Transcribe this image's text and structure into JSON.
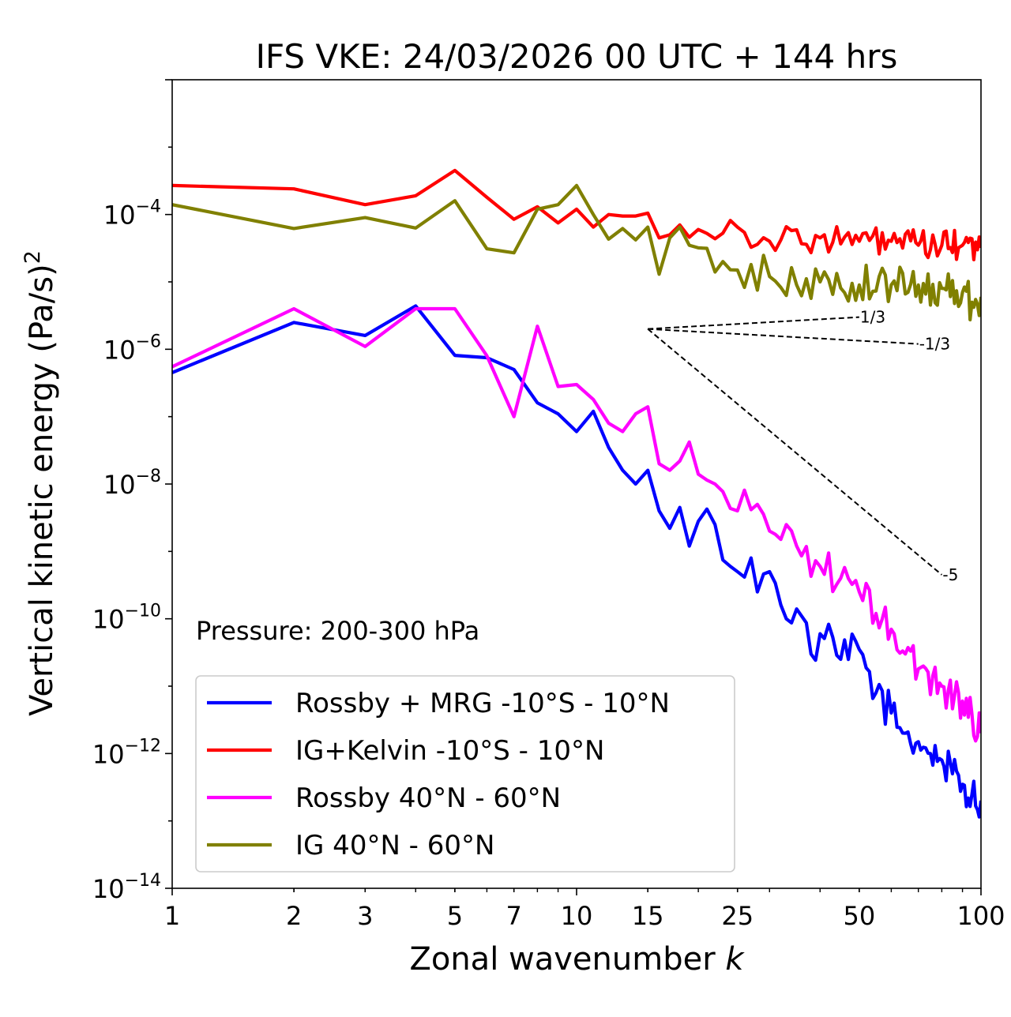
{
  "chart_data": {
    "type": "line",
    "title": "IFS VKE: 24/03/2026 00 UTC + 144 hrs",
    "xlabel": "Zonal wavenumber",
    "xlabel_var": "k",
    "ylabel": "Vertical kinetic energy (Pa/s)",
    "ylabel_exp": "2",
    "xscale": "log",
    "yscale": "log",
    "xlim": [
      1,
      100
    ],
    "ylim": [
      1e-14,
      0.01
    ],
    "xticks": [
      {
        "value": 1,
        "label": "1"
      },
      {
        "value": 2,
        "label": "2"
      },
      {
        "value": 3,
        "label": "3"
      },
      {
        "value": 5,
        "label": "5"
      },
      {
        "value": 7,
        "label": "7"
      },
      {
        "value": 10,
        "label": "10"
      },
      {
        "value": 15,
        "label": "15"
      },
      {
        "value": 25,
        "label": "25"
      },
      {
        "value": 50,
        "label": "50"
      },
      {
        "value": 100,
        "label": "100"
      }
    ],
    "yticks": [
      {
        "value": 0.0001,
        "base": "10",
        "exp": "−4"
      },
      {
        "value": 1e-06,
        "base": "10",
        "exp": "−6"
      },
      {
        "value": 1e-08,
        "base": "10",
        "exp": "−8"
      },
      {
        "value": 1e-10,
        "base": "10",
        "exp": "−10"
      },
      {
        "value": 1e-12,
        "base": "10",
        "exp": "−12"
      },
      {
        "value": 1e-14,
        "base": "10",
        "exp": "−14"
      }
    ],
    "annotation": "Pressure: 200-300 hPa",
    "legend_location": "lower-left",
    "reference_lines": [
      {
        "label": "1/3",
        "x0": 15,
        "y0": 2e-06,
        "x1": 50,
        "y1": 3e-06
      },
      {
        "label": "-1/3",
        "x0": 15,
        "y0": 2e-06,
        "x1": 70,
        "y1": 1.2e-06
      },
      {
        "label": "-5",
        "x0": 15,
        "y0": 2e-06,
        "x1": 80,
        "y1": 4.5e-10
      }
    ],
    "series": [
      {
        "name": "Rossby + MRG -10°S - 10°N",
        "color": "#0000ff",
        "anchors": [
          [
            1,
            4.5e-07
          ],
          [
            2,
            2.5e-06
          ],
          [
            3,
            1.6e-06
          ],
          [
            4,
            4.4e-06
          ],
          [
            5,
            8.1e-07
          ],
          [
            6,
            7.5e-07
          ],
          [
            7,
            5e-07
          ],
          [
            8,
            1.6e-07
          ],
          [
            9,
            1.1e-07
          ],
          [
            10,
            6e-08
          ],
          [
            11,
            1.2e-07
          ],
          [
            12,
            3.5e-08
          ],
          [
            13,
            1.6e-08
          ],
          [
            14,
            1e-08
          ],
          [
            15,
            1.6e-08
          ],
          [
            16,
            4e-09
          ],
          [
            17,
            2.2e-09
          ],
          [
            18,
            4.5e-09
          ],
          [
            19,
            1.2e-09
          ],
          [
            20,
            2.8e-09
          ],
          [
            22,
            2.5e-09
          ],
          [
            24,
            6e-10
          ],
          [
            25,
            5e-10
          ],
          [
            27,
            8e-10
          ],
          [
            28,
            2.5e-10
          ],
          [
            30,
            5e-10
          ],
          [
            32,
            1.6e-10
          ],
          [
            35,
            1.4e-10
          ],
          [
            38,
            3e-11
          ],
          [
            40,
            6e-11
          ],
          [
            45,
            2.5e-11
          ],
          [
            50,
            3.5e-11
          ],
          [
            55,
            8e-12
          ],
          [
            60,
            4e-12
          ],
          [
            65,
            2e-12
          ],
          [
            70,
            1.5e-12
          ],
          [
            75,
            1e-12
          ],
          [
            80,
            8e-13
          ],
          [
            85,
            5e-13
          ],
          [
            90,
            3.5e-13
          ],
          [
            95,
            2.5e-13
          ],
          [
            100,
            2e-13
          ]
        ],
        "noise": 0.3
      },
      {
        "name": "IG+Kelvin -10°S - 10°N",
        "color": "#ff0000",
        "anchors": [
          [
            1,
            0.00027
          ],
          [
            2,
            0.00024
          ],
          [
            3,
            0.00014
          ],
          [
            4,
            0.00019
          ],
          [
            5,
            0.00045
          ],
          [
            6,
            0.00018
          ],
          [
            7,
            8.5e-05
          ],
          [
            8,
            0.00013
          ],
          [
            9,
            7.5e-05
          ],
          [
            10,
            0.00012
          ],
          [
            11,
            6.5e-05
          ],
          [
            12,
            0.0001
          ],
          [
            13,
            9.5e-05
          ],
          [
            14,
            9.5e-05
          ],
          [
            15,
            0.000105
          ],
          [
            16,
            4.5e-05
          ],
          [
            17,
            5e-05
          ],
          [
            18,
            7e-05
          ],
          [
            20,
            6e-05
          ],
          [
            25,
            6.5e-05
          ],
          [
            30,
            4e-05
          ],
          [
            40,
            4.5e-05
          ],
          [
            50,
            4e-05
          ],
          [
            60,
            4e-05
          ],
          [
            70,
            3.5e-05
          ],
          [
            80,
            3.5e-05
          ],
          [
            90,
            3.5e-05
          ],
          [
            100,
            3.2e-05
          ]
        ],
        "noise": 0.22
      },
      {
        "name": "Rossby 40°N - 60°N",
        "color": "#ff00ff",
        "anchors": [
          [
            1,
            5.5e-07
          ],
          [
            2,
            4e-06
          ],
          [
            3,
            1.1e-06
          ],
          [
            4,
            4e-06
          ],
          [
            5,
            4e-06
          ],
          [
            6,
            8e-07
          ],
          [
            7,
            1e-07
          ],
          [
            8,
            2.2e-06
          ],
          [
            9,
            2.8e-07
          ],
          [
            10,
            3e-07
          ],
          [
            11,
            1.8e-07
          ],
          [
            12,
            8e-08
          ],
          [
            13,
            6e-08
          ],
          [
            14,
            1.1e-07
          ],
          [
            15,
            1.4e-07
          ],
          [
            16,
            2e-08
          ],
          [
            17,
            1.6e-08
          ],
          [
            18,
            2.2e-08
          ],
          [
            19,
            4.2e-08
          ],
          [
            20,
            1.4e-08
          ],
          [
            22,
            1e-08
          ],
          [
            25,
            4e-09
          ],
          [
            28,
            5e-09
          ],
          [
            30,
            2e-09
          ],
          [
            33,
            2.5e-09
          ],
          [
            35,
            1.2e-09
          ],
          [
            40,
            6e-10
          ],
          [
            45,
            4e-10
          ],
          [
            50,
            2.5e-10
          ],
          [
            55,
            1.2e-10
          ],
          [
            60,
            7e-11
          ],
          [
            65,
            3e-11
          ],
          [
            70,
            1.8e-11
          ],
          [
            80,
            1e-11
          ],
          [
            90,
            6e-12
          ],
          [
            100,
            2e-12
          ]
        ],
        "noise": 0.28
      },
      {
        "name": "IG 40°N - 60°N",
        "color": "#808000",
        "anchors": [
          [
            1,
            0.00014
          ],
          [
            2,
            6.2e-05
          ],
          [
            3,
            9e-05
          ],
          [
            4,
            6.3e-05
          ],
          [
            5,
            0.00016
          ],
          [
            6,
            3.1e-05
          ],
          [
            7,
            2.7e-05
          ],
          [
            8,
            0.00012
          ],
          [
            9,
            0.00014
          ],
          [
            10,
            0.00027
          ],
          [
            11,
            0.0001
          ],
          [
            12,
            4.3e-05
          ],
          [
            13,
            6.2e-05
          ],
          [
            14,
            4.2e-05
          ],
          [
            15,
            6.5e-05
          ],
          [
            16,
            1.3e-05
          ],
          [
            17,
            4.5e-05
          ],
          [
            18,
            6.5e-05
          ],
          [
            19,
            3.5e-05
          ],
          [
            20,
            3.2e-05
          ],
          [
            22,
            1.4e-05
          ],
          [
            25,
            1.5e-05
          ],
          [
            30,
            1.2e-05
          ],
          [
            35,
            9e-06
          ],
          [
            40,
            1e-05
          ],
          [
            50,
            9e-06
          ],
          [
            60,
            9e-06
          ],
          [
            70,
            9e-06
          ],
          [
            80,
            8e-06
          ],
          [
            90,
            7e-06
          ],
          [
            95,
            5e-06
          ],
          [
            100,
            6e-06
          ]
        ],
        "noise": 0.3
      }
    ]
  }
}
